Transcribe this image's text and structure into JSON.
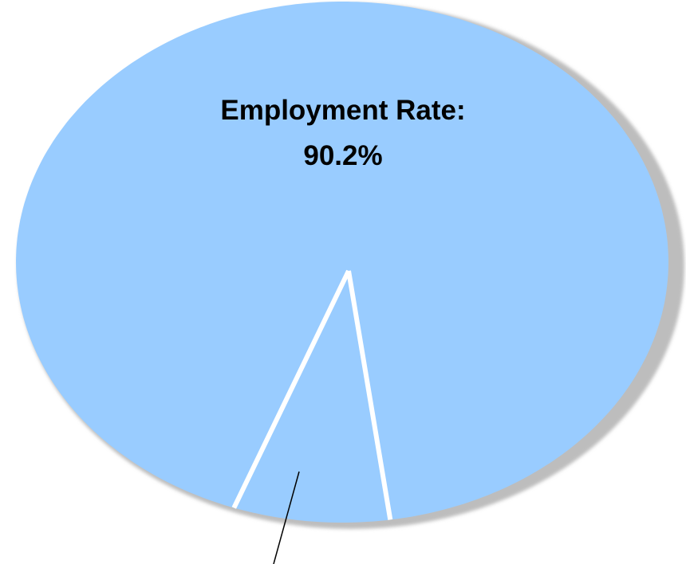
{
  "chart_data": {
    "type": "pie",
    "slices": [
      {
        "label": "Employment Rate:",
        "value": 90.2,
        "value_label": "90.2%",
        "color": "#99ccff"
      },
      {
        "label": "",
        "value": 9.8,
        "value_label": "",
        "color": "#99ccff"
      }
    ],
    "title": "",
    "legend": "none",
    "shadow_color": "#bdbdbd",
    "separator_color": "#ffffff",
    "leader_line_color": "#000000"
  }
}
